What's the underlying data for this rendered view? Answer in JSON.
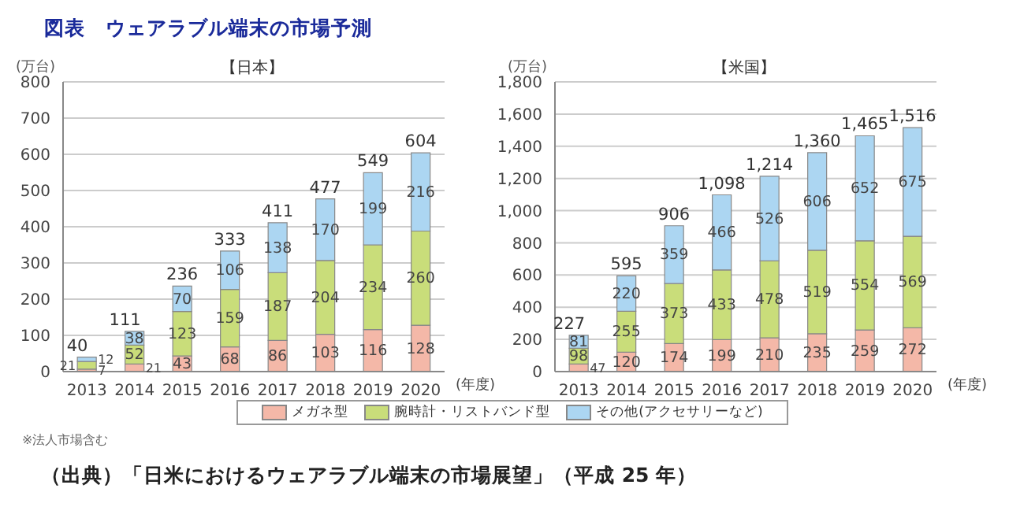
{
  "chart_data": [
    {
      "type": "bar",
      "title": "【日本】",
      "annotations": [
        "図表　ウェアラブル端末の市場予測",
        "※法人市場含む",
        "（出典）「日米におけるウェアラブル端末の市場展望」（平成 25 年）"
      ],
      "ylabel": "(万台)",
      "xlabel": "(年度)",
      "categories": [
        "2013",
        "2014",
        "2015",
        "2016",
        "2017",
        "2018",
        "2019",
        "2020"
      ],
      "stacked": true,
      "ylim": [
        0,
        800
      ],
      "yticks": [
        0,
        100,
        200,
        300,
        400,
        500,
        600,
        700,
        800
      ],
      "grid": "y",
      "legend": "bottom",
      "data_labels": true,
      "totals": [
        "40",
        "111",
        "236",
        "333",
        "411",
        "477",
        "549",
        "604"
      ],
      "series": [
        {
          "name": "メガネ型",
          "color": "#f4b8a8",
          "values": [
            7,
            21,
            43,
            68,
            86,
            103,
            116,
            128
          ]
        },
        {
          "name": "腕時計・リストバンド型",
          "color": "#c9dd7a",
          "values": [
            21,
            52,
            123,
            159,
            187,
            204,
            234,
            260
          ]
        },
        {
          "name": "その他(アクセサリーなど)",
          "color": "#acd6f2",
          "values": [
            12,
            38,
            70,
            106,
            138,
            170,
            199,
            216
          ]
        }
      ]
    },
    {
      "type": "bar",
      "title": "【米国】",
      "ylabel": "(万台)",
      "xlabel": "(年度)",
      "categories": [
        "2013",
        "2014",
        "2015",
        "2016",
        "2017",
        "2018",
        "2019",
        "2020"
      ],
      "stacked": true,
      "ylim": [
        0,
        1800
      ],
      "yticks": [
        0,
        200,
        400,
        600,
        800,
        {
          "value": 1000,
          "label": "1,000"
        },
        {
          "value": 1200,
          "label": "1,200"
        },
        {
          "value": 1400,
          "label": "1,400"
        },
        {
          "value": 1600,
          "label": "1,600"
        },
        {
          "value": 1800,
          "label": "1,800"
        }
      ],
      "grid": "y",
      "data_labels": true,
      "totals": [
        "227",
        "595",
        "906",
        "1,098",
        "1,214",
        "1,360",
        "1,465",
        "1,516"
      ],
      "series": [
        {
          "color": "#f4b8a8",
          "values": [
            47,
            120,
            174,
            199,
            210,
            235,
            259,
            272
          ]
        },
        {
          "color": "#c9dd7a",
          "values": [
            98,
            255,
            373,
            433,
            478,
            519,
            554,
            569
          ]
        },
        {
          "color": "#acd6f2",
          "values": [
            81,
            220,
            359,
            466,
            526,
            606,
            652,
            675
          ]
        }
      ]
    }
  ]
}
